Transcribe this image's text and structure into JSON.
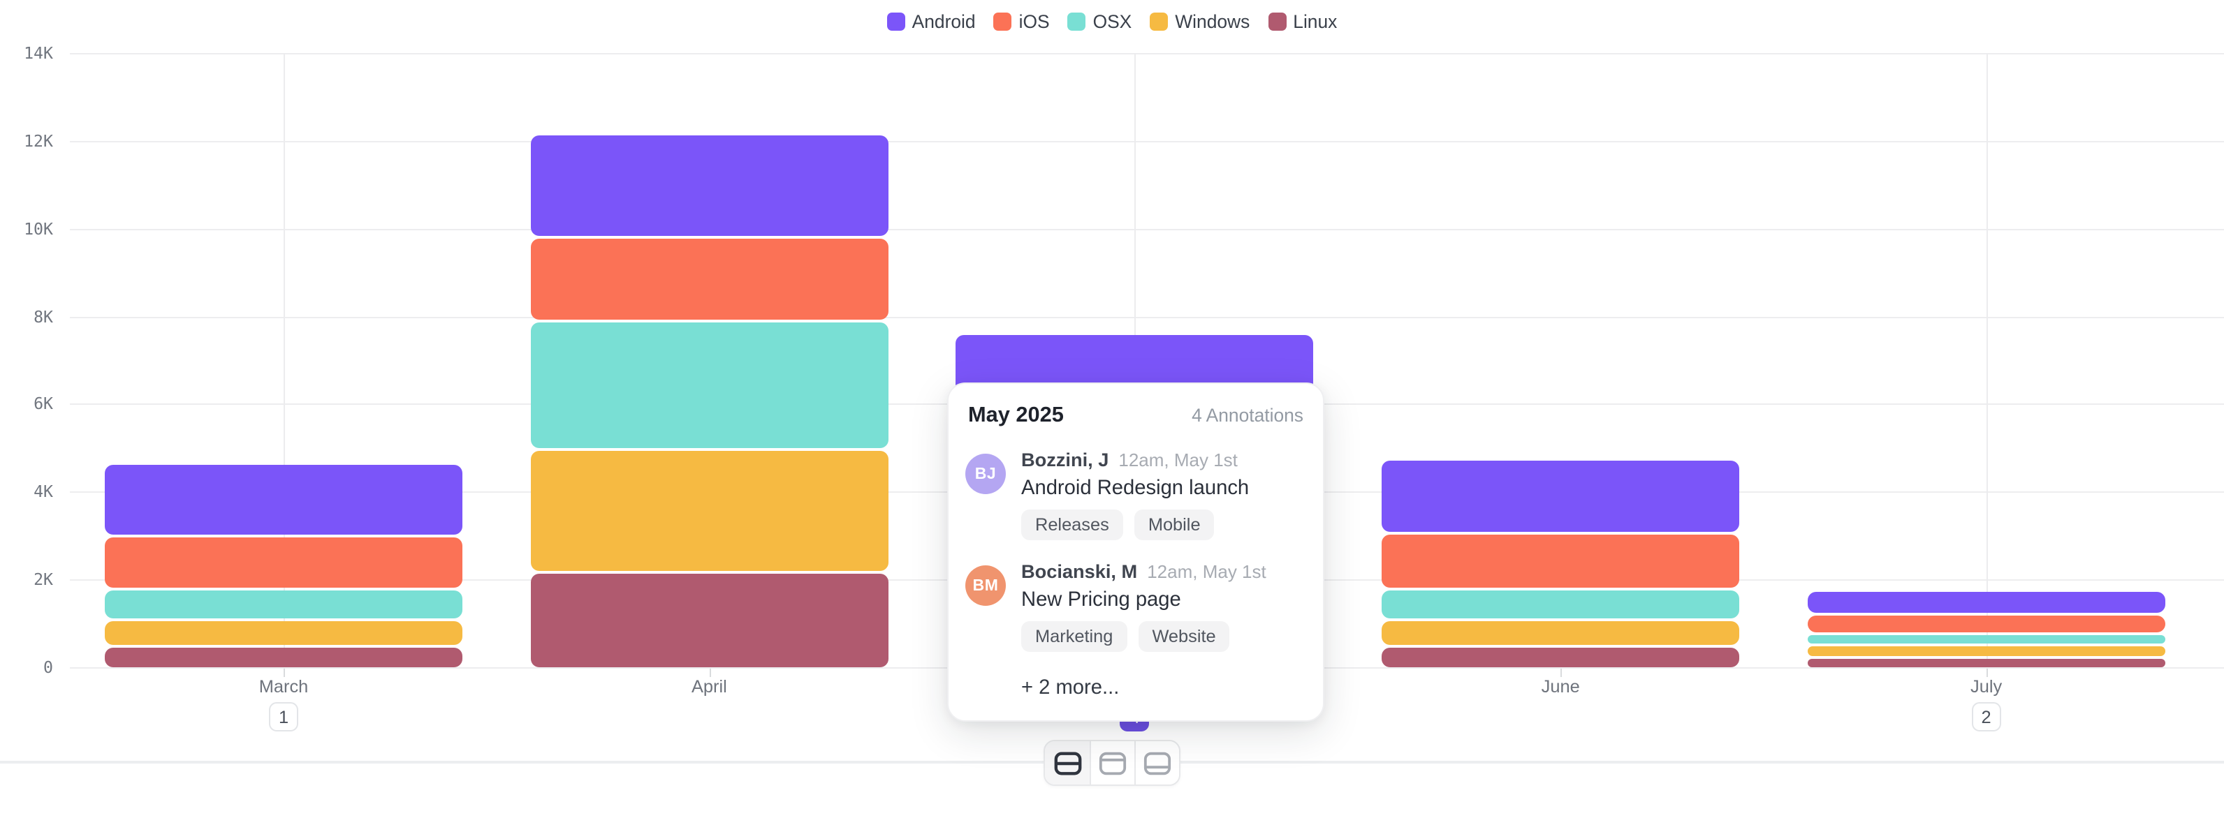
{
  "legend": {
    "items": [
      {
        "label": "Android",
        "color": "#7b55f9"
      },
      {
        "label": "iOS",
        "color": "#fb7256"
      },
      {
        "label": "OSX",
        "color": "#79dfd4"
      },
      {
        "label": "Windows",
        "color": "#f6ba42"
      },
      {
        "label": "Linux",
        "color": "#b05a6f"
      }
    ]
  },
  "chart_data": {
    "type": "bar",
    "stacked": true,
    "categories": [
      "March",
      "April",
      "May",
      "June",
      "July"
    ],
    "series": [
      {
        "name": "Android",
        "color": "#7b55f9",
        "values": [
          1600,
          2300,
          1950,
          1620,
          460
        ]
      },
      {
        "name": "iOS",
        "color": "#fb7256",
        "values": [
          1150,
          1850,
          1560,
          1230,
          390
        ]
      },
      {
        "name": "OSX",
        "color": "#79dfd4",
        "values": [
          620,
          2850,
          1460,
          620,
          195
        ]
      },
      {
        "name": "Windows",
        "color": "#f6ba42",
        "values": [
          530,
          2750,
          1300,
          540,
          225
        ]
      },
      {
        "name": "Linux",
        "color": "#b05a6f",
        "values": [
          460,
          2120,
          1050,
          450,
          185
        ]
      }
    ],
    "title": "",
    "xlabel": "",
    "ylabel": "",
    "ylim": [
      0,
      14000
    ],
    "y_tick_labels": [
      "0",
      "2K",
      "4K",
      "6K",
      "8K",
      "10K",
      "12K",
      "14K"
    ],
    "grid": true,
    "legend_position": "top",
    "annotation_marker_months": [
      "March",
      "May",
      "July"
    ]
  },
  "x_axis": {
    "badges": [
      {
        "month": "March",
        "count": "1",
        "active": false
      },
      {
        "month": "May",
        "count": "4",
        "active": true
      },
      {
        "month": "July",
        "count": "2",
        "active": false
      }
    ]
  },
  "popover": {
    "title": "May 2025",
    "count_label": "4 Annotations",
    "items": [
      {
        "initials": "BJ",
        "avatar_color": "#b4a6f2",
        "author": "Bozzini, J",
        "time": "12am, May 1st",
        "text": "Android Redesign launch",
        "tags": [
          "Releases",
          "Mobile"
        ]
      },
      {
        "initials": "BM",
        "avatar_color": "#f0946e",
        "author": "Bocianski, M",
        "time": "12am, May 1st",
        "text": "New Pricing page",
        "tags": [
          "Marketing",
          "Website"
        ]
      }
    ],
    "more_label": "+ 2 more..."
  },
  "toolbar": {
    "buttons": [
      {
        "icon": "panel-split-middle-icon",
        "active": true
      },
      {
        "icon": "panel-row-top-icon",
        "active": false
      },
      {
        "icon": "panel-row-bottom-icon",
        "active": false
      }
    ]
  },
  "colors": {
    "grid": "#ededef",
    "annotation_line": "#ececee",
    "axis_text": "#71767f",
    "badge_active_bg": "#6b4ee1",
    "divider": "#eceef0"
  }
}
